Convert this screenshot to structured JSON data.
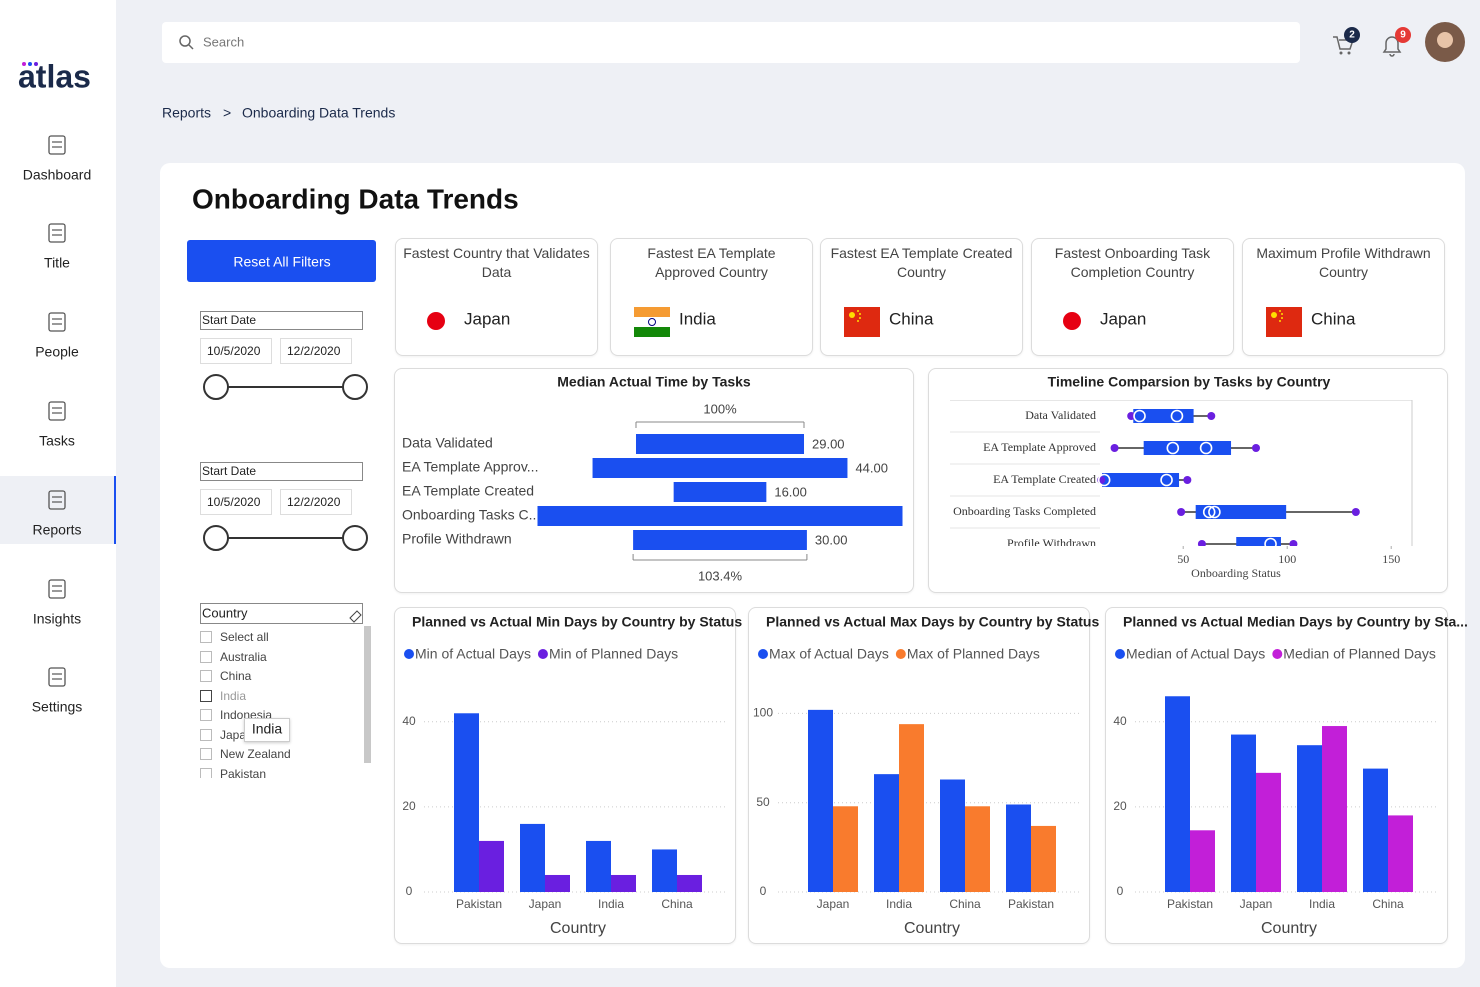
{
  "brand": "atlas",
  "search": {
    "placeholder": "Search"
  },
  "header": {
    "cart_count": 2,
    "notification_count": 9
  },
  "nav": [
    "Dashboard",
    "Title",
    "People",
    "Tasks",
    "Reports",
    "Insights",
    "Settings"
  ],
  "breadcrumb": {
    "items": [
      "Reports",
      "Onboarding Data Trends"
    ],
    "separator": ">"
  },
  "page_title": "Onboarding Data Trends",
  "reset_button": "Reset All Filters",
  "date_filters": [
    {
      "label": "Start Date",
      "start": "10/5/2020",
      "end": "12/2/2020"
    },
    {
      "label": "Start Date",
      "start": "10/5/2020",
      "end": "12/2/2020"
    }
  ],
  "country_filter": {
    "label": "Country",
    "options": [
      "Select all",
      "Australia",
      "China",
      "India",
      "Indonesia",
      "Japan",
      "New Zealand",
      "Pakistan"
    ],
    "tooltip": "India"
  },
  "kpis": [
    {
      "title": "Fastest Country that Validates Data",
      "value": "Japan"
    },
    {
      "title": "Fastest EA Template Approved Country",
      "value": "India"
    },
    {
      "title": "Fastest EA Template Created Country",
      "value": "China"
    },
    {
      "title": "Fastest Onboarding Task Completion Country",
      "value": "Japan"
    },
    {
      "title": "Maximum Profile Withdrawn Country",
      "value": "China"
    }
  ],
  "chart_data": [
    {
      "type": "funnel",
      "title": "Median Actual Time by Tasks",
      "categories": [
        "Data Validated",
        "EA Template Approv...",
        "EA Template Created",
        "Onboarding Tasks C...",
        "Profile Withdrawn"
      ],
      "values": [
        29,
        44,
        16,
        63,
        30
      ],
      "value_labels": [
        "29.00",
        "44.00",
        "16.00",
        null,
        "30.00"
      ],
      "color": "#1a4ff0",
      "annotations": {
        "top": "100%",
        "bottom": "103.4%"
      }
    },
    {
      "type": "box",
      "title": "Timeline Comparsion by Tasks by Country",
      "categories": [
        "Data Validated",
        "EA Template Approved",
        "EA Template Created",
        "Onboarding Tasks Completed",
        "Profile Withdrawn"
      ],
      "boxes": [
        {
          "min": 25,
          "q1": 26,
          "q3": 55,
          "max": 63.5,
          "points": [
            29,
            47
          ]
        },
        {
          "min": 17,
          "q1": 31,
          "q3": 73,
          "max": 85,
          "points": [
            45,
            61
          ]
        },
        {
          "min": 10.6,
          "q1": 11,
          "q3": 48,
          "max": 52,
          "points": [
            12,
            42
          ]
        },
        {
          "min": 49,
          "q1": 56,
          "q3": 99.5,
          "max": 133,
          "points": [
            62.5,
            65
          ]
        },
        {
          "min": 59,
          "q1": 75.5,
          "q3": 97,
          "max": 103,
          "points": [
            92
          ]
        }
      ],
      "color": "#1a4ff0",
      "xlim": [
        10,
        160
      ],
      "xticks": [
        50,
        100,
        150
      ],
      "xlabel": "Onboarding Status"
    },
    {
      "type": "bar",
      "title": "Planned vs Actual Min Days by Country by Status",
      "categories": [
        "Pakistan",
        "Japan",
        "India",
        "China"
      ],
      "series": [
        {
          "name": "Min of Actual Days",
          "color": "#1a4ff0",
          "values": [
            42,
            16,
            12,
            10
          ]
        },
        {
          "name": "Min of Planned Days",
          "color": "#6a1fe0",
          "values": [
            12,
            4,
            4,
            4
          ]
        }
      ],
      "ylim": [
        0,
        47
      ],
      "yticks": [
        0,
        20,
        40
      ],
      "xlabel": "Country",
      "grid": true
    },
    {
      "type": "bar",
      "title": "Planned vs Actual Max Days by Country by Status",
      "categories": [
        "Japan",
        "India",
        "China",
        "Pakistan"
      ],
      "series": [
        {
          "name": "Max of Actual Days",
          "color": "#1a4ff0",
          "values": [
            102,
            66,
            63,
            49
          ]
        },
        {
          "name": "Max of Planned Days",
          "color": "#f97b2d",
          "values": [
            48,
            94,
            48,
            37
          ]
        }
      ],
      "ylim": [
        0,
        112
      ],
      "yticks": [
        0,
        50,
        100
      ],
      "xlabel": "Country",
      "grid": true
    },
    {
      "type": "bar",
      "title": "Planned vs Actual Median Days by Country by Sta...",
      "categories": [
        "Pakistan",
        "Japan",
        "India",
        "China"
      ],
      "series": [
        {
          "name": "Median of Actual Days",
          "color": "#1a4ff0",
          "values": [
            46,
            37,
            34.5,
            29
          ]
        },
        {
          "name": "Median of Planned Days",
          "color": "#c21fd8",
          "values": [
            14.5,
            28,
            39,
            18
          ]
        }
      ],
      "ylim": [
        0,
        47
      ],
      "yticks": [
        0,
        20,
        40
      ],
      "xlabel": "Country",
      "grid": true
    }
  ]
}
